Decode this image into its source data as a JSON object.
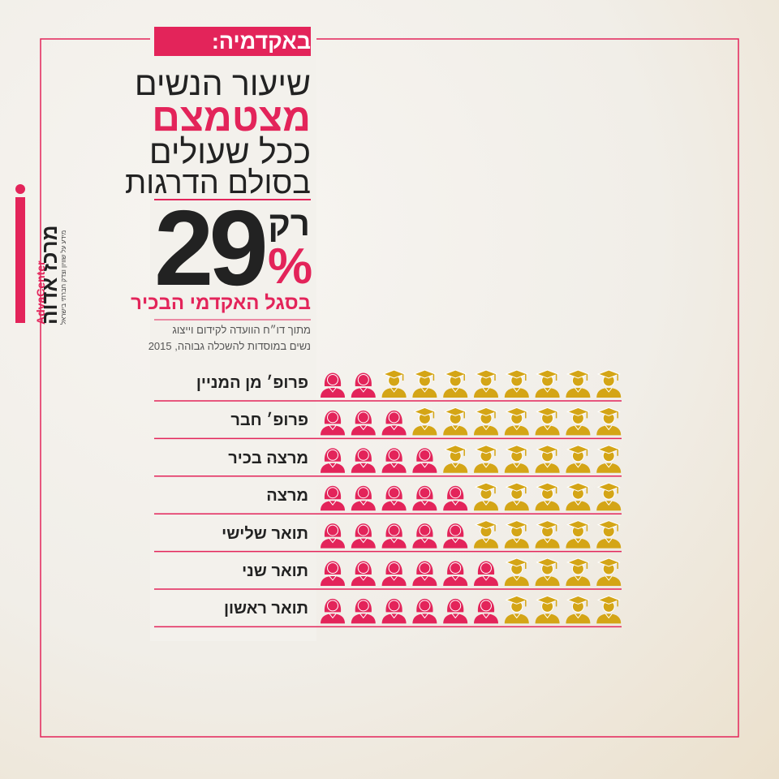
{
  "logo": {
    "en": "AdvaCenter",
    "he": "מרכז אדוה",
    "tagline": "מידע על שוויון וצדק חברתי בישראל"
  },
  "header": {
    "tag": "באקדמיה:",
    "title_lines": [
      "שיעור הנשים",
      "מצטמצם",
      "ככל שעולים",
      "בסולם הדרגות"
    ]
  },
  "highlight": {
    "prefix": "רק",
    "number": "29",
    "unit": "%",
    "caption": "בסגל האקדמי הבכיר"
  },
  "source": [
    "מתוך דו״ח הוועדה לקידום וייצוג",
    "נשים במוסדות להשכלה גבוהה, 2015"
  ],
  "chart_data": {
    "type": "pictogram",
    "categories": [
      "פרופ׳ מן המניין",
      "פרופ׳ חבר",
      "מרצה בכיר",
      "מרצה",
      "תואר שלישי",
      "תואר שני",
      "תואר ראשון"
    ],
    "values": [
      2,
      3,
      4,
      5,
      5,
      6,
      6
    ],
    "total": 10,
    "colors": {
      "women": "#e3245a",
      "men": "#d4a516"
    }
  }
}
